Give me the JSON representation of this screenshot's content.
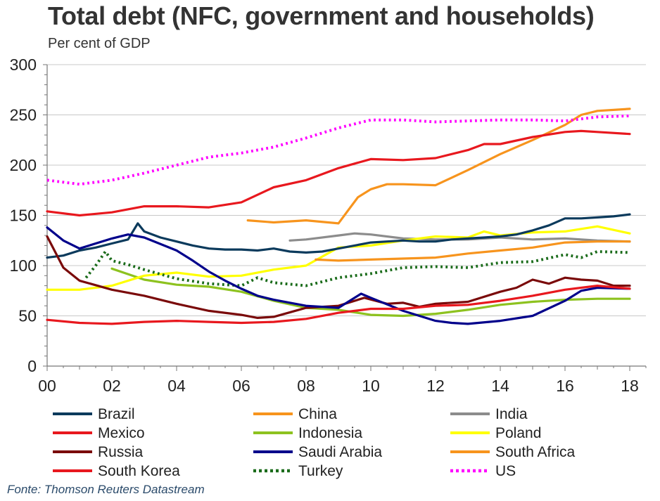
{
  "chart_data": {
    "type": "line",
    "title": "Total debt (NFC, government and households)",
    "subtitle": "Per cent of GDP",
    "source": "Fonte: Thomson Reuters Datastream",
    "xlabel": "",
    "ylabel": "Per cent of GDP",
    "xlim": [
      2000,
      2019
    ],
    "ylim": [
      0,
      300
    ],
    "x_ticks": [
      2000,
      2002,
      2004,
      2006,
      2008,
      2010,
      2012,
      2014,
      2016,
      2018
    ],
    "x_tick_labels": [
      "00",
      "02",
      "04",
      "06",
      "08",
      "10",
      "12",
      "14",
      "16",
      "18"
    ],
    "y_ticks": [
      0,
      50,
      100,
      150,
      200,
      250,
      300
    ],
    "y_tick_labels": [
      "0",
      "50",
      "100",
      "150",
      "200",
      "250",
      "300"
    ],
    "grid": "horizontal",
    "legend_position": "bottom",
    "series": [
      {
        "name": "Brazil",
        "color": "#0b3a5c",
        "dash": "solid",
        "x": [
          2000,
          2000.5,
          2001,
          2001.5,
          2002,
          2002.5,
          2002.8,
          2003,
          2003.5,
          2004,
          2004.5,
          2005,
          2005.5,
          2006,
          2006.5,
          2007,
          2007.5,
          2008,
          2008.5,
          2009,
          2009.5,
          2010,
          2010.5,
          2011,
          2011.5,
          2012,
          2012.5,
          2013,
          2013.5,
          2014,
          2014.5,
          2015,
          2015.5,
          2016,
          2016.5,
          2017,
          2017.5,
          2018
        ],
        "y": [
          108,
          110,
          115,
          118,
          122,
          126,
          142,
          134,
          128,
          124,
          120,
          117,
          116,
          116,
          115,
          117,
          114,
          113,
          114,
          117,
          120,
          123,
          124,
          125,
          124,
          124,
          126,
          127,
          128,
          129,
          131,
          135,
          140,
          147,
          147,
          148,
          149,
          151
        ]
      },
      {
        "name": "Mexico",
        "color": "#e8181e",
        "dash": "solid",
        "x": [
          2000,
          2001,
          2002,
          2003,
          2004,
          2005,
          2006,
          2007,
          2008,
          2009,
          2010,
          2011,
          2012,
          2013,
          2014,
          2015,
          2016,
          2017,
          2018
        ],
        "y": [
          46,
          43,
          42,
          44,
          45,
          44,
          43,
          44,
          47,
          53,
          57,
          57,
          60,
          61,
          65,
          70,
          76,
          80,
          77
        ]
      },
      {
        "name": "Russia",
        "color": "#7a0a0a",
        "dash": "solid",
        "x": [
          2000,
          2000.5,
          2001,
          2002,
          2003,
          2004,
          2005,
          2006,
          2006.5,
          2007,
          2008,
          2009,
          2009.8,
          2010.5,
          2011,
          2011.5,
          2012,
          2013,
          2014,
          2014.5,
          2015,
          2015.5,
          2016,
          2016.5,
          2017,
          2017.5,
          2018
        ],
        "y": [
          129,
          98,
          85,
          76,
          70,
          62,
          55,
          51,
          48,
          49,
          58,
          60,
          68,
          62,
          63,
          59,
          62,
          64,
          74,
          78,
          86,
          82,
          88,
          86,
          85,
          80,
          80
        ]
      },
      {
        "name": "South Korea",
        "color": "#e8181e",
        "dash": "solid",
        "x": [
          2000,
          2001,
          2002,
          2003,
          2004,
          2005,
          2006,
          2007,
          2008,
          2009,
          2010,
          2011,
          2012,
          2013,
          2013.5,
          2014,
          2015,
          2016,
          2016.5,
          2017,
          2018
        ],
        "y": [
          154,
          150,
          153,
          159,
          159,
          158,
          163,
          178,
          185,
          197,
          206,
          205,
          207,
          215,
          221,
          221,
          228,
          233,
          234,
          233,
          231
        ]
      },
      {
        "name": "China",
        "color": "#f7941d",
        "dash": "solid",
        "x": [
          2006.2,
          2007,
          2008,
          2009,
          2009.3,
          2009.6,
          2010,
          2010.5,
          2011,
          2012,
          2013,
          2014,
          2015,
          2016,
          2016.5,
          2017,
          2018
        ],
        "y": [
          145,
          143,
          145,
          142,
          155,
          168,
          176,
          181,
          181,
          180,
          195,
          211,
          225,
          240,
          250,
          254,
          256
        ]
      },
      {
        "name": "Indonesia",
        "color": "#8dc21f",
        "dash": "solid",
        "x": [
          2002,
          2003,
          2004,
          2005,
          2006,
          2007,
          2008,
          2009,
          2010,
          2011,
          2012,
          2013,
          2014,
          2015,
          2016,
          2017,
          2018
        ],
        "y": [
          97,
          86,
          81,
          79,
          74,
          65,
          58,
          56,
          51,
          50,
          52,
          56,
          61,
          64,
          66,
          67,
          67
        ]
      },
      {
        "name": "Saudi Arabia",
        "color": "#00008b",
        "dash": "solid",
        "x": [
          2000,
          2000.5,
          2001,
          2002,
          2002.5,
          2003,
          2004,
          2004.5,
          2005,
          2005.5,
          2006,
          2006.5,
          2007,
          2008,
          2009,
          2009.7,
          2010,
          2011,
          2011.5,
          2012,
          2012.5,
          2013,
          2014,
          2015,
          2016,
          2016.5,
          2017,
          2018
        ],
        "y": [
          138,
          125,
          117,
          127,
          131,
          128,
          115,
          105,
          94,
          85,
          77,
          70,
          66,
          60,
          58,
          72,
          68,
          55,
          50,
          45,
          43,
          42,
          45,
          50,
          65,
          75,
          78,
          77
        ]
      },
      {
        "name": "Turkey",
        "color": "#1a6b1a",
        "dash": "dotted",
        "x": [
          2001.2,
          2001.5,
          2001.8,
          2002,
          2002.5,
          2003,
          2004,
          2005,
          2006,
          2006.5,
          2007,
          2008,
          2009,
          2010,
          2011,
          2012,
          2013,
          2014,
          2015,
          2016,
          2016.5,
          2017,
          2018
        ],
        "y": [
          88,
          100,
          114,
          105,
          101,
          96,
          87,
          82,
          80,
          88,
          83,
          80,
          88,
          92,
          98,
          99,
          98,
          103,
          104,
          111,
          108,
          114,
          113
        ]
      },
      {
        "name": "India",
        "color": "#8c8c8c",
        "dash": "solid",
        "x": [
          2007.5,
          2008,
          2009,
          2009.5,
          2010,
          2011,
          2012,
          2013,
          2014,
          2015,
          2016,
          2017,
          2018
        ],
        "y": [
          125,
          126,
          130,
          132,
          131,
          127,
          126,
          126,
          128,
          126,
          127,
          125,
          124
        ]
      },
      {
        "name": "Poland",
        "color": "#ffff00",
        "dash": "solid",
        "x": [
          2000,
          2001,
          2002,
          2003,
          2004,
          2005,
          2006,
          2007,
          2008,
          2009,
          2010,
          2011,
          2012,
          2013,
          2013.5,
          2014,
          2015,
          2016,
          2017,
          2018
        ],
        "y": [
          76,
          76,
          80,
          90,
          93,
          89,
          90,
          96,
          100,
          118,
          120,
          125,
          129,
          128,
          134,
          130,
          133,
          134,
          139,
          132
        ]
      },
      {
        "name": "South Africa",
        "color": "#f7941d",
        "dash": "solid",
        "x": [
          2008.3,
          2009,
          2010,
          2011,
          2012,
          2013,
          2014,
          2015,
          2016,
          2017,
          2018
        ],
        "y": [
          106,
          105,
          106,
          107,
          108,
          112,
          115,
          118,
          123,
          124,
          124
        ]
      },
      {
        "name": "US",
        "color": "#ff00ff",
        "dash": "dotted",
        "x": [
          2000,
          2001,
          2002,
          2003,
          2004,
          2005,
          2006,
          2007,
          2008,
          2009,
          2010,
          2011,
          2012,
          2013,
          2014,
          2015,
          2016,
          2017,
          2018
        ],
        "y": [
          185,
          181,
          185,
          192,
          200,
          208,
          212,
          218,
          227,
          237,
          245,
          245,
          243,
          244,
          245,
          245,
          244,
          248,
          249
        ]
      }
    ]
  }
}
